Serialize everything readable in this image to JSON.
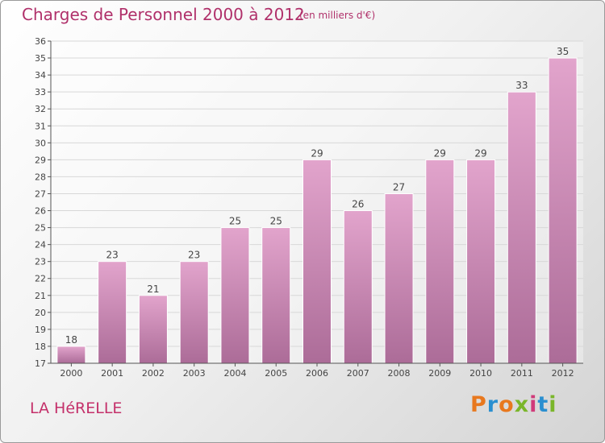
{
  "title": "Charges de Personnel 2000 à 2012",
  "subtitle": "(en milliers d'€)",
  "commune": "LA HéRELLE",
  "logo": {
    "text": "Proxiti",
    "colors": [
      "#e8781e",
      "#2a8fd0",
      "#e8781e",
      "#7ab62a",
      "#d03a7a",
      "#2a8fd0",
      "#7ab62a"
    ]
  },
  "colors": {
    "title": "#b0306a",
    "bar_top": "#e2a4cc",
    "bar_bottom": "#ac6c98",
    "grid": "#d8d8d8",
    "axis": "#555555"
  },
  "chart_data": {
    "type": "bar",
    "categories": [
      "2000",
      "2001",
      "2002",
      "2003",
      "2004",
      "2005",
      "2006",
      "2007",
      "2008",
      "2009",
      "2010",
      "2011",
      "2012"
    ],
    "values": [
      18,
      23,
      21,
      23,
      25,
      25,
      29,
      26,
      27,
      29,
      29,
      33,
      35
    ],
    "ylim": [
      17,
      36
    ],
    "yticks": [
      17,
      18,
      19,
      20,
      21,
      22,
      23,
      24,
      25,
      26,
      27,
      28,
      29,
      30,
      31,
      32,
      33,
      34,
      35,
      36
    ],
    "grid": true,
    "data_labels": true
  }
}
